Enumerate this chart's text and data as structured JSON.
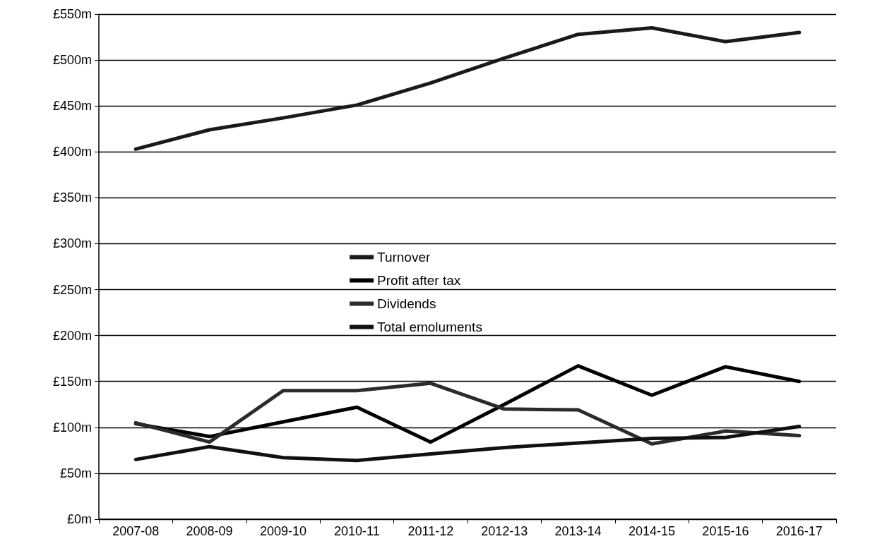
{
  "chart_data": {
    "type": "line",
    "categories": [
      "2007-08",
      "2008-09",
      "2009-10",
      "2010-11",
      "2011-12",
      "2012-13",
      "2013-14",
      "2014-15",
      "2015-16",
      "2016-17"
    ],
    "series": [
      {
        "name": "Turnover",
        "color": "#1a1a1a",
        "values": [
          403,
          424,
          437,
          451,
          475,
          502,
          528,
          535,
          520,
          530
        ]
      },
      {
        "name": "Profit after tax",
        "color": "#000000",
        "values": [
          104,
          90,
          106,
          122,
          84,
          125,
          167,
          135,
          166,
          150
        ]
      },
      {
        "name": "Dividends",
        "color": "#2b2b2b",
        "values": [
          105,
          84,
          140,
          140,
          148,
          120,
          119,
          82,
          96,
          91
        ]
      },
      {
        "name": "Total emoluments",
        "color": "#111111",
        "values": [
          65,
          79,
          67,
          64,
          71,
          78,
          83,
          88,
          89,
          101
        ]
      }
    ],
    "ylim": [
      0,
      550
    ],
    "yticks": [
      {
        "value": 0,
        "label": "£0m"
      },
      {
        "value": 50,
        "label": "£50m"
      },
      {
        "value": 100,
        "label": "£100m"
      },
      {
        "value": 150,
        "label": "£150m"
      },
      {
        "value": 200,
        "label": "£200m"
      },
      {
        "value": 250,
        "label": "£250m"
      },
      {
        "value": 300,
        "label": "£300m"
      },
      {
        "value": 350,
        "label": "£350m"
      },
      {
        "value": 400,
        "label": "£400m"
      },
      {
        "value": 450,
        "label": "£450m"
      },
      {
        "value": 500,
        "label": "£500m"
      },
      {
        "value": 550,
        "label": "£550m"
      }
    ],
    "grid": "y",
    "legend": "center",
    "marker": "none",
    "line_style": "solid"
  }
}
